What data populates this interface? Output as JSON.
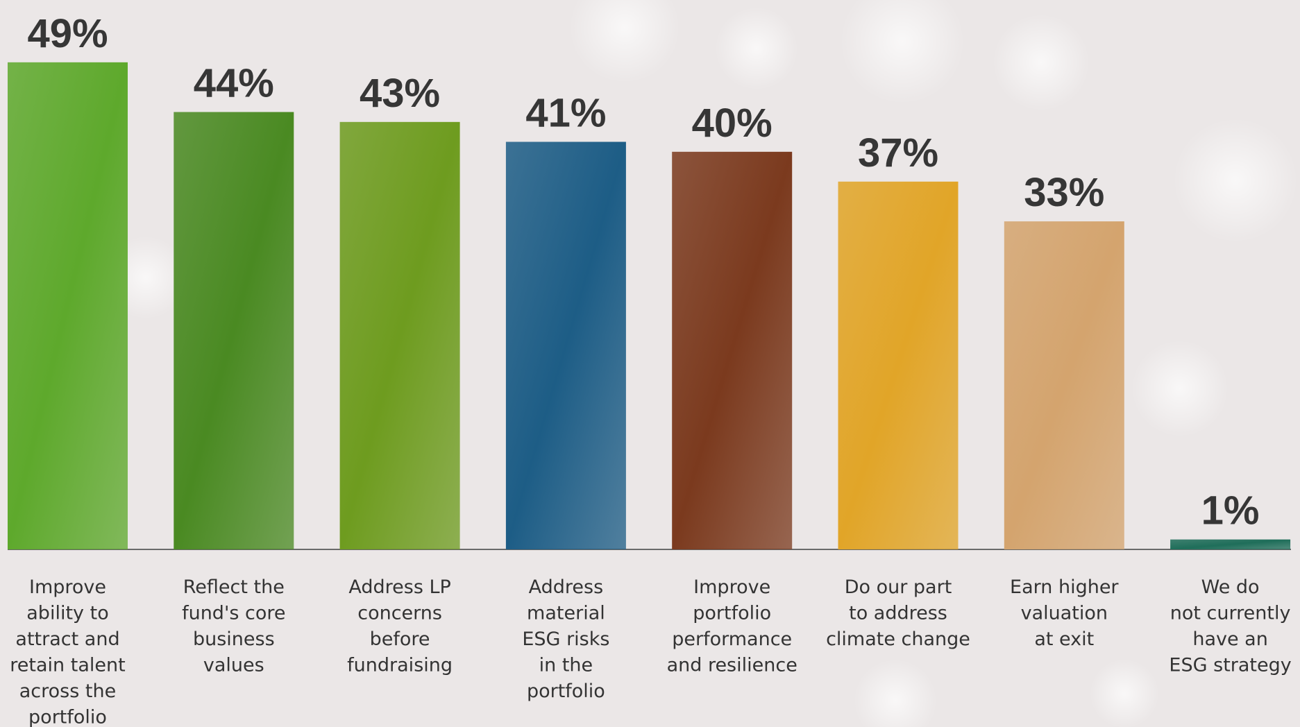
{
  "chart_data": {
    "type": "bar",
    "categories": [
      "Improve\nability to\nattract and\nretain talent\nacross the\nportfolio",
      "Reflect the\nfund's core\nbusiness\nvalues",
      "Address LP\nconcerns\nbefore\nfundraising",
      "Address\nmaterial\nESG risks\nin the\nportfolio",
      "Improve\nportfolio\nperformance\nand resilience",
      "Do our part\nto address\nclimate change",
      "Earn higher\nvaluation\nat exit",
      "We do\nnot currently\nhave an\nESG strategy"
    ],
    "values": [
      49,
      44,
      43,
      41,
      40,
      37,
      33,
      1
    ],
    "value_labels": [
      "49%",
      "44%",
      "43%",
      "41%",
      "40%",
      "37%",
      "33%",
      "1%"
    ],
    "colors": [
      "#5ea92c",
      "#4a8a22",
      "#6e9c1f",
      "#1d5d86",
      "#7b3a1e",
      "#e1a528",
      "#d4a46e",
      "#1f6e5a"
    ],
    "ylim": [
      0,
      50
    ]
  }
}
